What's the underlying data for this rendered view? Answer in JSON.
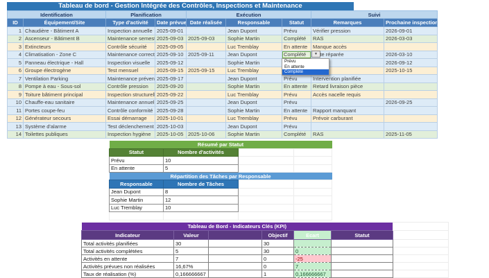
{
  "main_table": {
    "title": "Tableau de bord - Gestion Intégrée des Contrôles, Inspections et Maintenance",
    "sections": [
      {
        "label": "Identification",
        "span": 2
      },
      {
        "label": "Planification",
        "span": 2
      },
      {
        "label": "Exécution",
        "span": 3
      },
      {
        "label": "Suivi",
        "span": 2
      }
    ],
    "columns": [
      "ID",
      "Équipement/Site",
      "Type d'activité",
      "Date prévue",
      "Date réalisée",
      "Responsable",
      "Statut",
      "Remarques",
      "Prochaine inspection"
    ],
    "rows": [
      {
        "id": "1",
        "equipement": "Chaudière - Bâtiment A",
        "type": "Inspection annuelle",
        "date_prevue": "2025-09-01",
        "date_realisee": "",
        "responsable": "Jean Dupont",
        "statut": "Prévu",
        "remarques": "Vérifier pression",
        "prochaine": "2026-09-01",
        "theme": "blue"
      },
      {
        "id": "2",
        "equipement": "Ascenseur - Bâtiment B",
        "type": "Maintenance semestrielle",
        "date_prevue": "2025-09-03",
        "date_realisee": "2025-09-03",
        "responsable": "Sophie Martin",
        "statut": "Complété",
        "remarques": "RAS",
        "prochaine": "2026-03-03",
        "theme": "green"
      },
      {
        "id": "3",
        "equipement": "Extincteurs",
        "type": "Contrôle sécurité",
        "date_prevue": "2025-09-05",
        "date_realisee": "",
        "responsable": "Luc Tremblay",
        "statut": "En attente",
        "remarques": "Manque accès",
        "prochaine": "",
        "theme": "tan"
      },
      {
        "id": "4",
        "equipement": "Climatisation - Zone C",
        "type": "Maintenance corrective",
        "date_prevue": "2025-09-10",
        "date_realisee": "2025-09-11",
        "responsable": "Jean Dupont",
        "statut": "Complété",
        "remarques": "Fuite réparée",
        "prochaine": "2026-03-10",
        "theme": "blue",
        "active_statut": true
      },
      {
        "id": "5",
        "equipement": "Panneau électrique - Hall",
        "type": "Inspection visuelle",
        "date_prevue": "2025-09-12",
        "date_realisee": "",
        "responsable": "Sophie Martin",
        "statut": "",
        "remarques": "",
        "prochaine": "2026-09-12",
        "theme": "blue"
      },
      {
        "id": "6",
        "equipement": "Groupe électrogène",
        "type": "Test mensuel",
        "date_prevue": "2025-09-15",
        "date_realisee": "2025-09-15",
        "responsable": "Luc Tremblay",
        "statut": "",
        "remarques": "",
        "prochaine": "2025-10-15",
        "theme": "tan"
      },
      {
        "id": "7",
        "equipement": "Ventilation Parking",
        "type": "Maintenance préventive",
        "date_prevue": "2025-09-17",
        "date_realisee": "",
        "responsable": "Jean Dupont",
        "statut": "Prévu",
        "remarques": "Intervention planifiée",
        "prochaine": "",
        "theme": "blue"
      },
      {
        "id": "8",
        "equipement": "Pompe à eau - Sous-sol",
        "type": "Contrôle pression",
        "date_prevue": "2025-09-20",
        "date_realisee": "",
        "responsable": "Sophie Martin",
        "statut": "En attente",
        "remarques": "Retard livraison pièce",
        "prochaine": "",
        "theme": "green"
      },
      {
        "id": "9",
        "equipement": "Toiture bâtiment principal",
        "type": "Inspection structurelle",
        "date_prevue": "2025-09-22",
        "date_realisee": "",
        "responsable": "Luc Tremblay",
        "statut": "Prévu",
        "remarques": "Accès nacelle requis",
        "prochaine": "",
        "theme": "tan"
      },
      {
        "id": "10",
        "equipement": "Chauffe-eau sanitaire",
        "type": "Maintenance annuelle",
        "date_prevue": "2025-09-25",
        "date_realisee": "",
        "responsable": "Jean Dupont",
        "statut": "Prévu",
        "remarques": "",
        "prochaine": "2026-09-25",
        "theme": "blue"
      },
      {
        "id": "11",
        "equipement": "Portes coupe-feu",
        "type": "Contrôle conformité",
        "date_prevue": "2025-09-28",
        "date_realisee": "",
        "responsable": "Sophie Martin",
        "statut": "En attente",
        "remarques": "Rapport manquant",
        "prochaine": "",
        "theme": "blue"
      },
      {
        "id": "12",
        "equipement": "Générateur secours",
        "type": "Essai démarrage",
        "date_prevue": "2025-10-01",
        "date_realisee": "",
        "responsable": "Luc Tremblay",
        "statut": "Prévu",
        "remarques": "Prévoir carburant",
        "prochaine": "",
        "theme": "tan"
      },
      {
        "id": "13",
        "equipement": "Système d'alarme",
        "type": "Test déclenchement",
        "date_prevue": "2025-10-03",
        "date_realisee": "",
        "responsable": "Jean Dupont",
        "statut": "Prévu",
        "remarques": "",
        "prochaine": "",
        "theme": "blue"
      },
      {
        "id": "14",
        "equipement": "Toilettes publiques",
        "type": "Inspection hygiène",
        "date_prevue": "2025-10-05",
        "date_realisee": "2025-10-06",
        "responsable": "Sophie Martin",
        "statut": "Complété",
        "remarques": "RAS",
        "prochaine": "2025-11-05",
        "theme": "green"
      }
    ]
  },
  "dropdown": {
    "arrow": "▼",
    "options": [
      "Prévu",
      "En attente",
      "Complété"
    ],
    "highlighted": "Complété"
  },
  "resume_table": {
    "title": "Résumé par Statut",
    "columns": [
      "Statut",
      "Nombre d'activités"
    ],
    "rows": [
      {
        "statut": "Prévu",
        "nombre": "10"
      },
      {
        "statut": "En attente",
        "nombre": "5"
      }
    ]
  },
  "repartition_table": {
    "title": "Répartition des Tâches par Responsable",
    "columns": [
      "Responsable",
      "Nombre de Tâches"
    ],
    "rows": [
      {
        "responsable": "Jean Dupont",
        "nombre": "8"
      },
      {
        "responsable": "Sophie Martin",
        "nombre": "12"
      },
      {
        "responsable": "Luc Tremblay",
        "nombre": "10"
      }
    ]
  },
  "kpi_table": {
    "title": "Tableau de Bord - Indicateurs Clés (KPI)",
    "columns": [
      "Indicateur",
      "Valeur",
      "",
      "Objectif",
      "Ecart",
      "Statut"
    ],
    "rows": [
      {
        "indicateur": "Total activités planifiées",
        "valeur": "30",
        "objectif": "30",
        "ecart": "",
        "ecart_style": "green",
        "statut": ""
      },
      {
        "indicateur": "Total activités complétées",
        "valeur": "5",
        "objectif": "30",
        "ecart": "0",
        "ecart_style": "green",
        "statut": ""
      },
      {
        "indicateur": "Activités en attente",
        "valeur": "7",
        "objectif": "0",
        "ecart": "-25",
        "ecart_style": "red",
        "statut": ""
      },
      {
        "indicateur": "Activités prévues non réalisées",
        "valeur": "16,67%",
        "objectif": "0",
        "ecart": "7",
        "ecart_style": "green",
        "statut": ""
      },
      {
        "indicateur": "Taux de réalisation (%)",
        "valeur": "0,166666667",
        "objectif": "1",
        "ecart": "0,166666667",
        "ecart_style": "green",
        "statut": ""
      }
    ]
  },
  "colors": {
    "title_bar_blue": "#2F76B5",
    "section_row_blue": "#BDD7EE",
    "column_header_blue": "#4A7EBB",
    "row_blue": "#DDEBF7",
    "row_green": "#E2EFDA",
    "row_tan": "#FCEFD4",
    "tan_text": "#A8680B",
    "resume_title_green": "#70AD47",
    "resume_header_green": "#548235",
    "repartition_title_blue": "#5B9BD5",
    "repartition_header_blue": "#2E75B6",
    "kpi_title_purple": "#6C2FA2",
    "kpi_header_purple": "#5B3A82",
    "ecart_green": "#C6EFCE",
    "ecart_red": "#FFC7CE",
    "ecart_red_text": "#9C0006",
    "dropdown_highlight_blue": "#2468CF"
  }
}
